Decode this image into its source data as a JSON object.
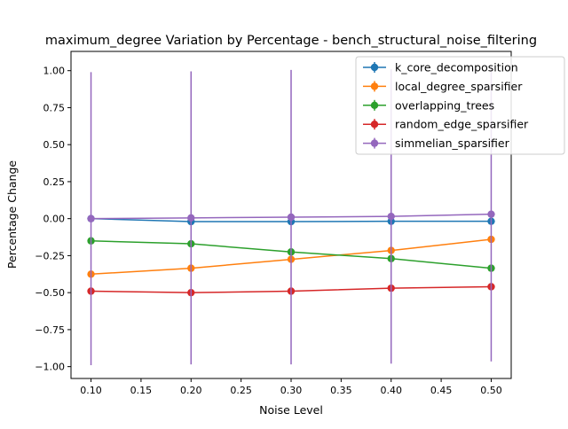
{
  "chart_data": {
    "type": "line",
    "title": "maximum_degree Variation by Percentage - bench_structural_noise_filtering",
    "xlabel": "Noise Level",
    "ylabel": "Percentage Change",
    "x": [
      0.1,
      0.2,
      0.3,
      0.4,
      0.5
    ],
    "xlim": [
      0.08,
      0.52
    ],
    "ylim": [
      -1.08,
      1.13
    ],
    "x_ticks": [
      0.1,
      0.15,
      0.2,
      0.25,
      0.3,
      0.35,
      0.4,
      0.45,
      0.5
    ],
    "x_tick_labels": [
      "0.10",
      "0.15",
      "0.20",
      "0.25",
      "0.30",
      "0.35",
      "0.40",
      "0.45",
      "0.50"
    ],
    "y_ticks": [
      -1.0,
      -0.75,
      -0.5,
      -0.25,
      0.0,
      0.25,
      0.5,
      0.75,
      1.0
    ],
    "y_tick_labels": [
      "−1.00",
      "−0.75",
      "−0.50",
      "−0.25",
      "0.00",
      "0.25",
      "0.50",
      "0.75",
      "1.00"
    ],
    "grid": false,
    "legend_position": "top-right",
    "series": [
      {
        "name": "k_core_decomposition",
        "color": "#1f77b4",
        "values": [
          0.0,
          -0.02,
          -0.02,
          -0.018,
          -0.018
        ],
        "err": [
          0.005,
          0.005,
          0.005,
          0.005,
          0.005
        ]
      },
      {
        "name": "local_degree_sparsifier",
        "color": "#ff7f0e",
        "values": [
          -0.375,
          -0.335,
          -0.275,
          -0.215,
          -0.14
        ],
        "err": [
          0.005,
          0.005,
          0.005,
          0.005,
          0.005
        ]
      },
      {
        "name": "overlapping_trees",
        "color": "#2ca02c",
        "values": [
          -0.15,
          -0.17,
          -0.225,
          -0.27,
          -0.335
        ],
        "err": [
          0.005,
          0.005,
          0.005,
          0.005,
          0.005
        ]
      },
      {
        "name": "random_edge_sparsifier",
        "color": "#d62728",
        "values": [
          -0.49,
          -0.5,
          -0.49,
          -0.47,
          -0.46
        ],
        "err": [
          0.005,
          0.005,
          0.005,
          0.005,
          0.005
        ]
      },
      {
        "name": "simmelian_sparsifier",
        "color": "#9467bd",
        "values": [
          0.0,
          0.005,
          0.01,
          0.015,
          0.03
        ],
        "err": [
          0.99,
          0.99,
          0.995,
          0.995,
          0.995
        ]
      }
    ]
  }
}
